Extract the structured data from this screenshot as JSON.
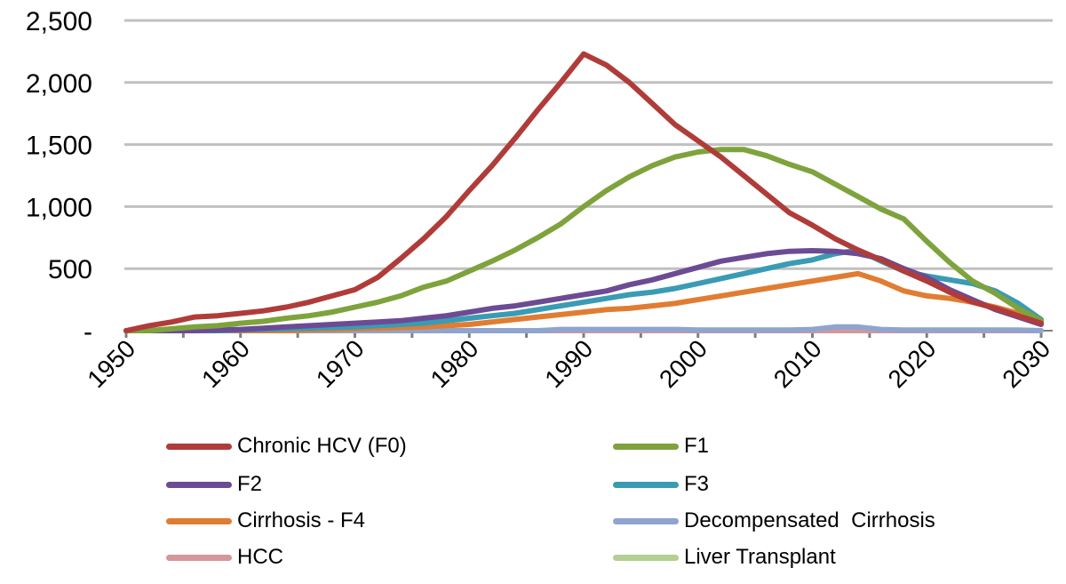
{
  "chart_data": {
    "type": "line",
    "title": "",
    "xlabel": "",
    "ylabel": "",
    "ylim": [
      0,
      2500
    ],
    "xlim": [
      1950,
      2030
    ],
    "y_ticks": [
      {
        "value": 0,
        "label": "-"
      },
      {
        "value": 500,
        "label": "500"
      },
      {
        "value": 1000,
        "label": "1,000"
      },
      {
        "value": 1500,
        "label": "1,500"
      },
      {
        "value": 2000,
        "label": "2,000"
      },
      {
        "value": 2500,
        "label": "2,500"
      }
    ],
    "x_ticks": [
      "1950",
      "1960",
      "1970",
      "1980",
      "1990",
      "2000",
      "2010",
      "2020",
      "2030"
    ],
    "grid": true,
    "legend_position": "bottom",
    "x": [
      1950,
      1952,
      1954,
      1956,
      1958,
      1960,
      1962,
      1964,
      1966,
      1968,
      1970,
      1972,
      1974,
      1976,
      1978,
      1980,
      1982,
      1984,
      1986,
      1988,
      1990,
      1992,
      1994,
      1996,
      1998,
      2000,
      2002,
      2004,
      2006,
      2008,
      2010,
      2012,
      2014,
      2016,
      2018,
      2020,
      2022,
      2024,
      2026,
      2028,
      2030
    ],
    "series": [
      {
        "name": "Chronic HCV (F0)",
        "color": "#b03c3a",
        "values": [
          0,
          40,
          70,
          110,
          120,
          140,
          160,
          190,
          230,
          280,
          330,
          430,
          580,
          740,
          920,
          1130,
          1330,
          1550,
          1780,
          2000,
          2230,
          2140,
          2000,
          1830,
          1660,
          1530,
          1400,
          1250,
          1100,
          950,
          850,
          740,
          650,
          570,
          480,
          400,
          310,
          230,
          180,
          120,
          60
        ]
      },
      {
        "name": "F1",
        "color": "#7ea33d",
        "values": [
          0,
          0,
          15,
          30,
          40,
          60,
          75,
          100,
          120,
          150,
          190,
          230,
          280,
          350,
          400,
          480,
          560,
          650,
          750,
          860,
          1000,
          1130,
          1240,
          1330,
          1400,
          1440,
          1460,
          1460,
          1410,
          1340,
          1280,
          1180,
          1080,
          980,
          900,
          720,
          550,
          400,
          300,
          180,
          80
        ]
      },
      {
        "name": "F2",
        "color": "#6c4b94",
        "values": [
          0,
          0,
          0,
          0,
          5,
          10,
          20,
          30,
          40,
          50,
          60,
          70,
          80,
          100,
          120,
          150,
          180,
          200,
          230,
          260,
          290,
          320,
          370,
          410,
          460,
          510,
          560,
          590,
          620,
          640,
          645,
          640,
          620,
          580,
          500,
          430,
          330,
          250,
          170,
          110,
          50
        ]
      },
      {
        "name": "F3",
        "color": "#3a9bb4",
        "values": [
          0,
          0,
          0,
          0,
          0,
          5,
          10,
          15,
          20,
          25,
          30,
          40,
          50,
          60,
          80,
          100,
          120,
          140,
          170,
          200,
          230,
          260,
          290,
          310,
          340,
          380,
          420,
          460,
          500,
          540,
          570,
          620,
          650,
          560,
          480,
          440,
          410,
          380,
          320,
          220,
          90
        ]
      },
      {
        "name": "Cirrhosis - F4",
        "color": "#e07d32",
        "values": [
          0,
          0,
          0,
          0,
          0,
          0,
          0,
          0,
          5,
          10,
          15,
          20,
          25,
          30,
          40,
          50,
          70,
          90,
          110,
          130,
          150,
          170,
          180,
          200,
          220,
          250,
          280,
          310,
          340,
          370,
          400,
          430,
          460,
          400,
          320,
          280,
          260,
          230,
          190,
          140,
          70
        ]
      },
      {
        "name": "Decompensated  Cirrhosis",
        "color": "#8fa5cf",
        "values": [
          0,
          0,
          0,
          0,
          0,
          0,
          0,
          0,
          0,
          0,
          0,
          0,
          0,
          0,
          0,
          0,
          0,
          0,
          0,
          10,
          10,
          10,
          10,
          10,
          10,
          5,
          5,
          5,
          5,
          5,
          10,
          30,
          30,
          10,
          5,
          5,
          5,
          5,
          5,
          5,
          0
        ]
      },
      {
        "name": "HCC",
        "color": "#d4979a",
        "values": [
          0,
          0,
          0,
          0,
          0,
          0,
          0,
          0,
          0,
          0,
          0,
          0,
          0,
          0,
          0,
          0,
          0,
          0,
          0,
          0,
          0,
          0,
          0,
          0,
          0,
          0,
          0,
          0,
          0,
          0,
          0,
          0,
          0,
          0,
          0,
          0,
          0,
          0,
          0,
          0,
          0
        ]
      },
      {
        "name": "Liver Transplant",
        "color": "#b3cf93",
        "values": [
          0,
          0,
          0,
          0,
          0,
          0,
          0,
          0,
          0,
          0,
          0,
          0,
          0,
          0,
          0,
          0,
          0,
          0,
          0,
          0,
          0,
          0,
          0,
          0,
          0,
          0,
          0,
          0,
          0,
          0,
          0,
          0,
          0,
          0,
          0,
          0,
          0,
          0,
          0,
          0,
          0
        ]
      }
    ]
  }
}
